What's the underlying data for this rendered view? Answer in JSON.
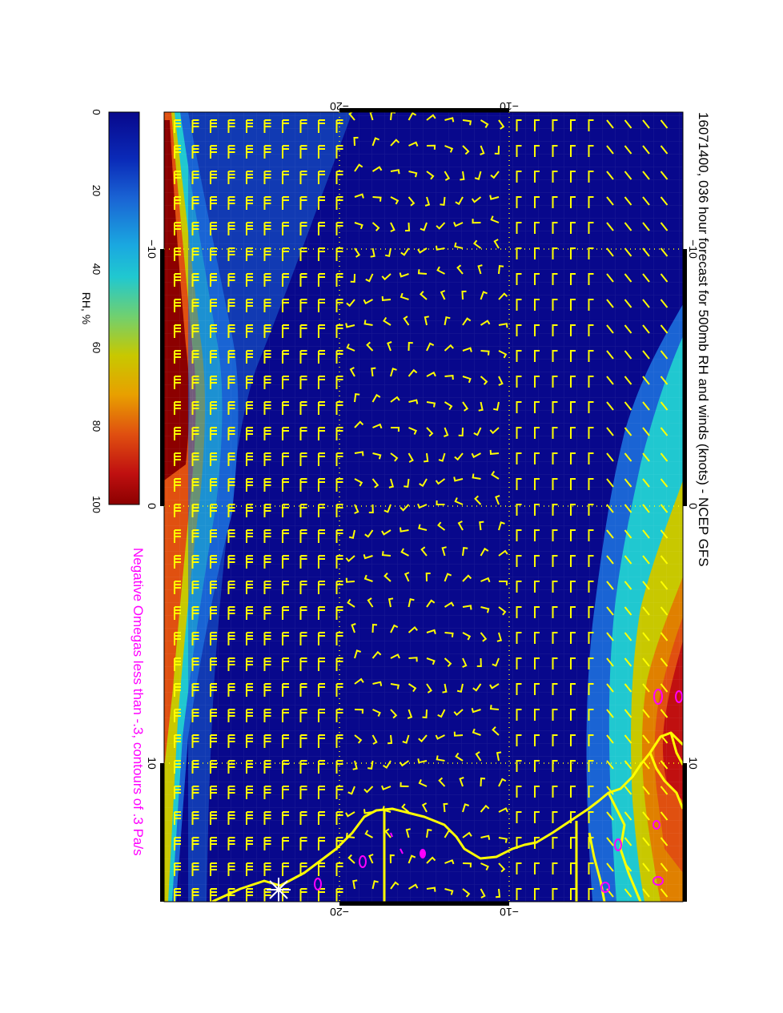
{
  "title": "16071400, 036 hour forecast for 500mb RH and winds (knots) - NCEP GFS",
  "subtitle": "Negative Omegas less than -.3, contours of .3 Pa/s",
  "colorbar": {
    "label": "RH, %",
    "ticks": [
      "0",
      "20",
      "40",
      "60",
      "80",
      "100"
    ],
    "range": [
      0,
      100
    ]
  },
  "axes": {
    "top_ticks": [
      "−20",
      "−10"
    ],
    "bottom_ticks": [
      "−20",
      "−10"
    ],
    "left_ticks": [
      "−10",
      "0",
      "10"
    ],
    "right_ticks": [
      "−10",
      "0",
      "10"
    ]
  },
  "colors": {
    "rh_0": "#08088c",
    "rh_20": "#1a64d4",
    "rh_40": "#20c8d0",
    "rh_60": "#c8c800",
    "rh_80": "#e05010",
    "rh_100": "#8c0000",
    "wind_barbs": "#ffff00",
    "coastline": "#ffff00",
    "omega_contours": "#ff00ff",
    "subtitle": "#ff00ff",
    "grid": "#ffff00"
  },
  "icons": {
    "wind_barb": "wind-barb-icon",
    "location_marker": "asterisk-marker-icon"
  }
}
